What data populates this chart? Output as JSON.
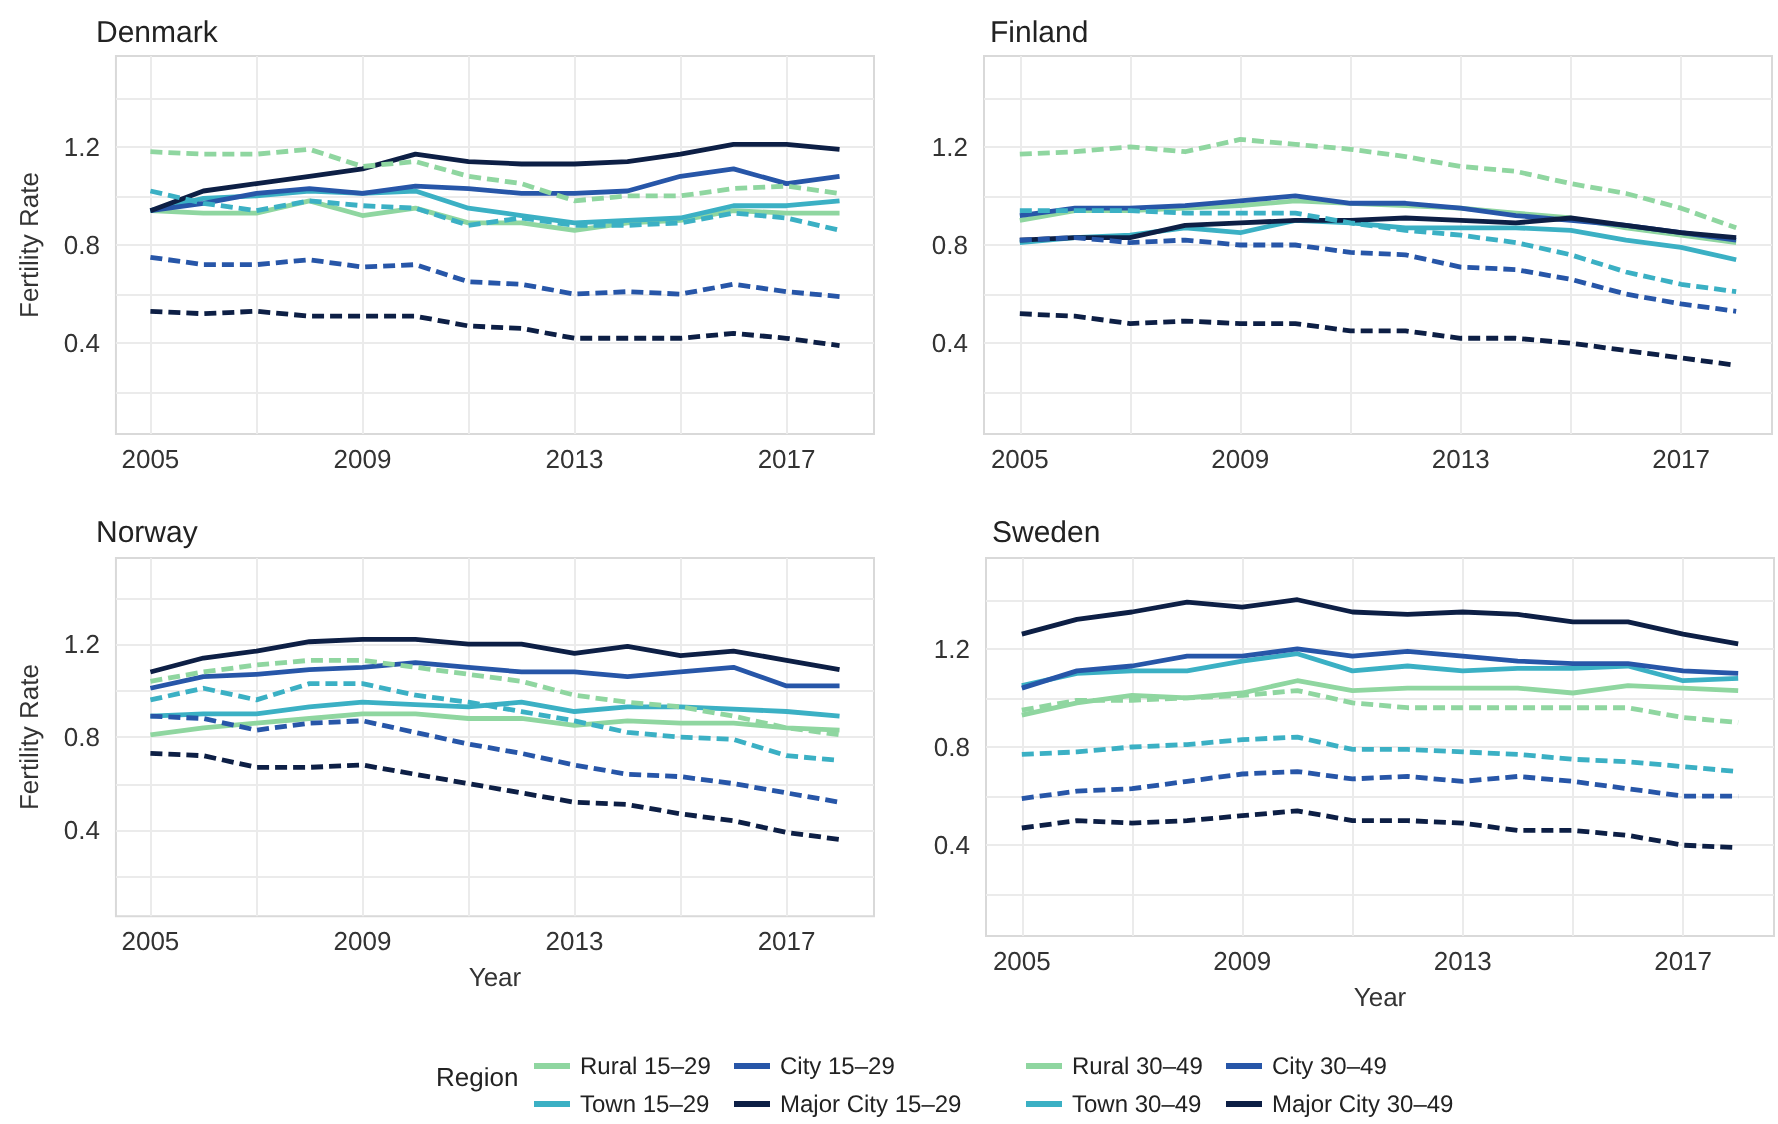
{
  "chart_data": [
    {
      "type": "line",
      "title": "Denmark",
      "ylabel": "Fertility Rate",
      "x": [
        2005,
        2006,
        2007,
        2008,
        2009,
        2010,
        2011,
        2012,
        2013,
        2014,
        2015,
        2016,
        2017,
        2018
      ],
      "xlim": [
        2004.35,
        2018.65
      ],
      "xticks": [
        2005,
        {
          "value": 2007,
          "label": null
        },
        2009,
        {
          "value": 2011,
          "label": null
        },
        2013,
        {
          "value": 2015,
          "label": null
        },
        2017
      ],
      "ylim": [
        0.03,
        1.57
      ],
      "yticks": [
        {
          "value": 0.2,
          "label": null
        },
        0.4,
        {
          "value": 0.6,
          "label": null
        },
        0.8,
        {
          "value": 1.0,
          "label": null
        },
        1.2,
        {
          "value": 1.4,
          "label": null
        }
      ],
      "grid": true,
      "marker": "none",
      "series": [
        {
          "color": "#8fd6a0",
          "line_style": "solid",
          "values": [
            0.94,
            0.93,
            0.93,
            0.98,
            0.92,
            0.95,
            0.89,
            0.89,
            0.86,
            0.89,
            0.9,
            0.94,
            0.93,
            0.93
          ]
        },
        {
          "color": "#3bb0c4",
          "line_style": "solid",
          "values": [
            0.94,
            0.99,
            1.0,
            1.02,
            1.01,
            1.02,
            0.95,
            0.92,
            0.89,
            0.9,
            0.91,
            0.96,
            0.96,
            0.98
          ]
        },
        {
          "color": "#2756a8",
          "line_style": "solid",
          "values": [
            0.94,
            0.97,
            1.01,
            1.03,
            1.01,
            1.04,
            1.03,
            1.01,
            1.01,
            1.02,
            1.08,
            1.11,
            1.05,
            1.08
          ]
        },
        {
          "color": "#0d1f45",
          "line_style": "solid",
          "values": [
            0.94,
            1.02,
            1.05,
            1.08,
            1.11,
            1.17,
            1.14,
            1.13,
            1.13,
            1.14,
            1.17,
            1.21,
            1.21,
            1.19
          ]
        },
        {
          "color": "#8fd6a0",
          "line_style": "dashed",
          "values": [
            1.18,
            1.17,
            1.17,
            1.19,
            1.12,
            1.14,
            1.08,
            1.05,
            0.98,
            1.0,
            1.0,
            1.03,
            1.04,
            1.01
          ]
        },
        {
          "color": "#3bb0c4",
          "line_style": "dashed",
          "values": [
            1.02,
            0.97,
            0.94,
            0.98,
            0.96,
            0.95,
            0.88,
            0.91,
            0.88,
            0.88,
            0.89,
            0.93,
            0.91,
            0.86
          ]
        },
        {
          "color": "#2756a8",
          "line_style": "dashed",
          "values": [
            0.75,
            0.72,
            0.72,
            0.74,
            0.71,
            0.72,
            0.65,
            0.64,
            0.6,
            0.61,
            0.6,
            0.64,
            0.61,
            0.59
          ]
        },
        {
          "color": "#0d1f45",
          "line_style": "dashed",
          "values": [
            0.53,
            0.52,
            0.53,
            0.51,
            0.51,
            0.51,
            0.47,
            0.46,
            0.42,
            0.42,
            0.42,
            0.44,
            0.42,
            0.39
          ]
        }
      ]
    },
    {
      "type": "line",
      "title": "Finland",
      "x": [
        2005,
        2006,
        2007,
        2008,
        2009,
        2010,
        2011,
        2012,
        2013,
        2014,
        2015,
        2016,
        2017,
        2018
      ],
      "xlim": [
        2004.35,
        2018.65
      ],
      "xticks": [
        2005,
        {
          "value": 2007,
          "label": null
        },
        2009,
        {
          "value": 2011,
          "label": null
        },
        2013,
        {
          "value": 2015,
          "label": null
        },
        2017
      ],
      "ylim": [
        0.03,
        1.57
      ],
      "yticks": [
        {
          "value": 0.2,
          "label": null
        },
        0.4,
        {
          "value": 0.6,
          "label": null
        },
        0.8,
        {
          "value": 1.0,
          "label": null
        },
        1.2,
        {
          "value": 1.4,
          "label": null
        }
      ],
      "grid": true,
      "marker": "none",
      "series": [
        {
          "color": "#8fd6a0",
          "line_style": "solid",
          "values": [
            0.9,
            0.94,
            0.94,
            0.95,
            0.96,
            0.98,
            0.97,
            0.96,
            0.95,
            0.93,
            0.91,
            0.87,
            0.84,
            0.81
          ]
        },
        {
          "color": "#3bb0c4",
          "line_style": "solid",
          "values": [
            0.81,
            0.83,
            0.84,
            0.87,
            0.85,
            0.9,
            0.89,
            0.87,
            0.87,
            0.87,
            0.86,
            0.82,
            0.79,
            0.74
          ]
        },
        {
          "color": "#2756a8",
          "line_style": "solid",
          "values": [
            0.92,
            0.95,
            0.95,
            0.96,
            0.98,
            1.0,
            0.97,
            0.97,
            0.95,
            0.92,
            0.9,
            0.88,
            0.85,
            0.82
          ]
        },
        {
          "color": "#0d1f45",
          "line_style": "solid",
          "values": [
            0.82,
            0.83,
            0.83,
            0.88,
            0.89,
            0.9,
            0.9,
            0.91,
            0.9,
            0.89,
            0.91,
            0.88,
            0.85,
            0.83
          ]
        },
        {
          "color": "#8fd6a0",
          "line_style": "dashed",
          "values": [
            1.17,
            1.18,
            1.2,
            1.18,
            1.23,
            1.21,
            1.19,
            1.16,
            1.12,
            1.1,
            1.05,
            1.01,
            0.95,
            0.87
          ]
        },
        {
          "color": "#3bb0c4",
          "line_style": "dashed",
          "values": [
            0.94,
            0.94,
            0.94,
            0.93,
            0.93,
            0.93,
            0.89,
            0.86,
            0.84,
            0.81,
            0.76,
            0.69,
            0.64,
            0.61
          ]
        },
        {
          "color": "#2756a8",
          "line_style": "dashed",
          "values": [
            0.82,
            0.83,
            0.81,
            0.82,
            0.8,
            0.8,
            0.77,
            0.76,
            0.71,
            0.7,
            0.66,
            0.6,
            0.56,
            0.53
          ]
        },
        {
          "color": "#0d1f45",
          "line_style": "dashed",
          "values": [
            0.52,
            0.51,
            0.48,
            0.49,
            0.48,
            0.48,
            0.45,
            0.45,
            0.42,
            0.42,
            0.4,
            0.37,
            0.34,
            0.31
          ]
        }
      ]
    },
    {
      "type": "line",
      "title": "Norway",
      "ylabel": "Fertility Rate",
      "xlabel": "Year",
      "x": [
        2005,
        2006,
        2007,
        2008,
        2009,
        2010,
        2011,
        2012,
        2013,
        2014,
        2015,
        2016,
        2017,
        2018
      ],
      "xlim": [
        2004.35,
        2018.65
      ],
      "xticks": [
        2005,
        {
          "value": 2007,
          "label": null
        },
        2009,
        {
          "value": 2011,
          "label": null
        },
        2013,
        {
          "value": 2015,
          "label": null
        },
        2017
      ],
      "ylim": [
        0.03,
        1.57
      ],
      "yticks": [
        {
          "value": 0.2,
          "label": null
        },
        0.4,
        {
          "value": 0.6,
          "label": null
        },
        0.8,
        {
          "value": 1.0,
          "label": null
        },
        1.2,
        {
          "value": 1.4,
          "label": null
        }
      ],
      "grid": true,
      "marker": "none",
      "series": [
        {
          "color": "#8fd6a0",
          "line_style": "solid",
          "values": [
            0.81,
            0.84,
            0.86,
            0.88,
            0.9,
            0.9,
            0.88,
            0.88,
            0.85,
            0.87,
            0.86,
            0.86,
            0.84,
            0.83
          ]
        },
        {
          "color": "#3bb0c4",
          "line_style": "solid",
          "values": [
            0.89,
            0.9,
            0.9,
            0.93,
            0.95,
            0.94,
            0.93,
            0.95,
            0.91,
            0.93,
            0.93,
            0.92,
            0.91,
            0.89
          ]
        },
        {
          "color": "#2756a8",
          "line_style": "solid",
          "values": [
            1.01,
            1.06,
            1.07,
            1.09,
            1.1,
            1.12,
            1.1,
            1.08,
            1.08,
            1.06,
            1.08,
            1.1,
            1.02,
            1.02
          ]
        },
        {
          "color": "#0d1f45",
          "line_style": "solid",
          "values": [
            1.08,
            1.14,
            1.17,
            1.21,
            1.22,
            1.22,
            1.2,
            1.2,
            1.16,
            1.19,
            1.15,
            1.17,
            1.13,
            1.09
          ]
        },
        {
          "color": "#8fd6a0",
          "line_style": "dashed",
          "values": [
            1.04,
            1.08,
            1.11,
            1.13,
            1.13,
            1.1,
            1.07,
            1.04,
            0.98,
            0.95,
            0.93,
            0.89,
            0.84,
            0.81
          ]
        },
        {
          "color": "#3bb0c4",
          "line_style": "dashed",
          "values": [
            0.96,
            1.01,
            0.96,
            1.03,
            1.03,
            0.98,
            0.95,
            0.91,
            0.87,
            0.82,
            0.8,
            0.79,
            0.72,
            0.7
          ]
        },
        {
          "color": "#2756a8",
          "line_style": "dashed",
          "values": [
            0.89,
            0.88,
            0.83,
            0.86,
            0.87,
            0.82,
            0.77,
            0.73,
            0.68,
            0.64,
            0.63,
            0.6,
            0.56,
            0.52
          ]
        },
        {
          "color": "#0d1f45",
          "line_style": "dashed",
          "values": [
            0.73,
            0.72,
            0.67,
            0.67,
            0.68,
            0.64,
            0.6,
            0.56,
            0.52,
            0.51,
            0.47,
            0.44,
            0.39,
            0.36
          ]
        }
      ]
    },
    {
      "type": "line",
      "title": "Sweden",
      "xlabel": "Year",
      "legend_title": "Region",
      "x": [
        2005,
        2006,
        2007,
        2008,
        2009,
        2010,
        2011,
        2012,
        2013,
        2014,
        2015,
        2016,
        2017,
        2018
      ],
      "xlim": [
        2004.35,
        2018.65
      ],
      "xticks": [
        2005,
        {
          "value": 2007,
          "label": null
        },
        2009,
        {
          "value": 2011,
          "label": null
        },
        2013,
        {
          "value": 2015,
          "label": null
        },
        2017
      ],
      "ylim": [
        0.03,
        1.57
      ],
      "yticks": [
        {
          "value": 0.2,
          "label": null
        },
        0.4,
        {
          "value": 0.6,
          "label": null
        },
        0.8,
        {
          "value": 1.0,
          "label": null
        },
        1.2,
        {
          "value": 1.4,
          "label": null
        }
      ],
      "grid": true,
      "legend": "bottom",
      "marker": "none",
      "series": [
        {
          "name": "Rural 15–29",
          "color": "#8fd6a0",
          "line_style": "solid",
          "values": [
            0.93,
            0.98,
            1.01,
            1.0,
            1.02,
            1.07,
            1.03,
            1.04,
            1.04,
            1.04,
            1.02,
            1.05,
            1.04,
            1.03
          ]
        },
        {
          "name": "Town 15–29",
          "color": "#3bb0c4",
          "line_style": "solid",
          "values": [
            1.05,
            1.1,
            1.11,
            1.11,
            1.15,
            1.18,
            1.11,
            1.13,
            1.11,
            1.12,
            1.12,
            1.13,
            1.07,
            1.08
          ]
        },
        {
          "name": "City 15–29",
          "color": "#2756a8",
          "line_style": "solid",
          "values": [
            1.04,
            1.11,
            1.13,
            1.17,
            1.17,
            1.2,
            1.17,
            1.19,
            1.17,
            1.15,
            1.14,
            1.14,
            1.11,
            1.1
          ]
        },
        {
          "name": "Major City 15–29",
          "color": "#0d1f45",
          "line_style": "solid",
          "values": [
            1.26,
            1.32,
            1.35,
            1.39,
            1.37,
            1.4,
            1.35,
            1.34,
            1.35,
            1.34,
            1.31,
            1.31,
            1.26,
            1.22
          ]
        },
        {
          "name": "Rural 30–49",
          "color": "#8fd6a0",
          "line_style": "dashed",
          "values": [
            0.95,
            0.99,
            0.99,
            1.0,
            1.01,
            1.03,
            0.98,
            0.96,
            0.96,
            0.96,
            0.96,
            0.96,
            0.92,
            0.9
          ]
        },
        {
          "name": "Town 30–49",
          "color": "#3bb0c4",
          "line_style": "dashed",
          "values": [
            0.77,
            0.78,
            0.8,
            0.81,
            0.83,
            0.84,
            0.79,
            0.79,
            0.78,
            0.77,
            0.75,
            0.74,
            0.72,
            0.7
          ]
        },
        {
          "name": "City 30–49",
          "color": "#2756a8",
          "line_style": "dashed",
          "values": [
            0.59,
            0.62,
            0.63,
            0.66,
            0.69,
            0.7,
            0.67,
            0.68,
            0.66,
            0.68,
            0.66,
            0.63,
            0.6,
            0.6
          ]
        },
        {
          "name": "Major City 30–49",
          "color": "#0d1f45",
          "line_style": "dashed",
          "values": [
            0.47,
            0.5,
            0.49,
            0.5,
            0.52,
            0.54,
            0.5,
            0.5,
            0.49,
            0.46,
            0.46,
            0.44,
            0.4,
            0.39
          ]
        }
      ]
    }
  ]
}
